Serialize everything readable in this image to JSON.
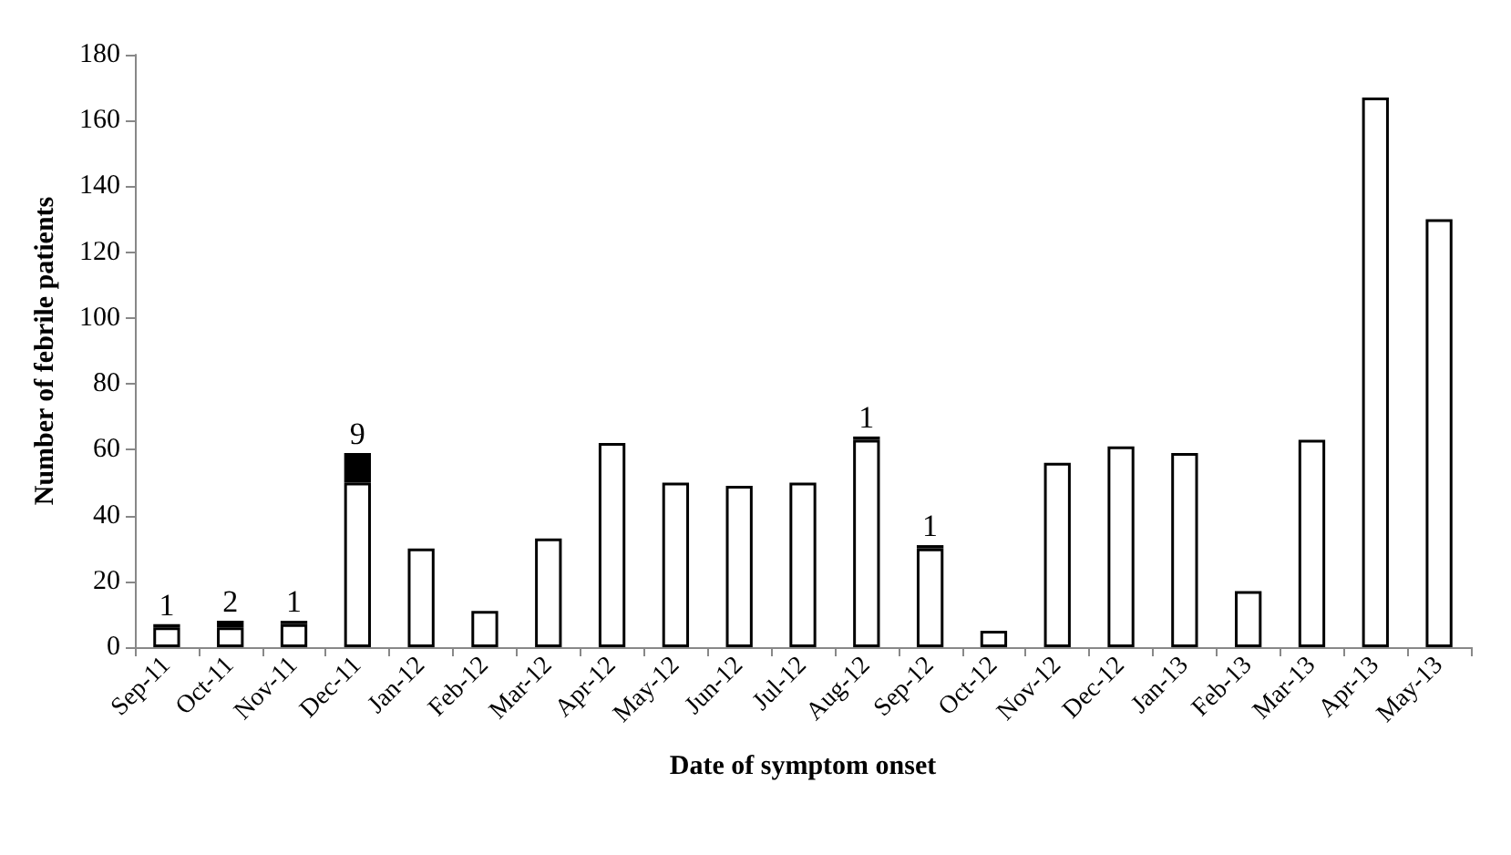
{
  "chart_data": {
    "type": "bar",
    "stacked": true,
    "xlabel": "Date of symptom onset",
    "ylabel": "Number of febrile patients",
    "categories": [
      "Sep-11",
      "Oct-11",
      "Nov-11",
      "Dec-11",
      "Jan-12",
      "Feb-12",
      "Mar-12",
      "Apr-12",
      "May-12",
      "Jun-12",
      "Jul-12",
      "Aug-12",
      "Sep-12",
      "Oct-12",
      "Nov-12",
      "Dec-12",
      "Jan-13",
      "Feb-13",
      "Mar-13",
      "Apr-13",
      "May-13"
    ],
    "series": [
      {
        "color": "#ffffff",
        "values": [
          6,
          6,
          7,
          50,
          30,
          11,
          33,
          62,
          50,
          49,
          50,
          63,
          30,
          5,
          56,
          61,
          59,
          17,
          63,
          167,
          130
        ]
      },
      {
        "color": "#000000",
        "values": [
          1,
          2,
          1,
          9,
          null,
          null,
          null,
          null,
          null,
          null,
          null,
          1,
          1,
          null,
          null,
          null,
          null,
          null,
          null,
          null,
          null
        ],
        "value_labels": [
          "1",
          "2",
          "1",
          "9",
          null,
          null,
          null,
          null,
          null,
          null,
          null,
          "1",
          "1",
          null,
          null,
          null,
          null,
          null,
          null,
          null,
          null
        ]
      }
    ],
    "ylim": [
      0,
      180
    ],
    "yticks": [
      0,
      20,
      40,
      60,
      80,
      100,
      120,
      140,
      160,
      180
    ],
    "grid": false
  }
}
